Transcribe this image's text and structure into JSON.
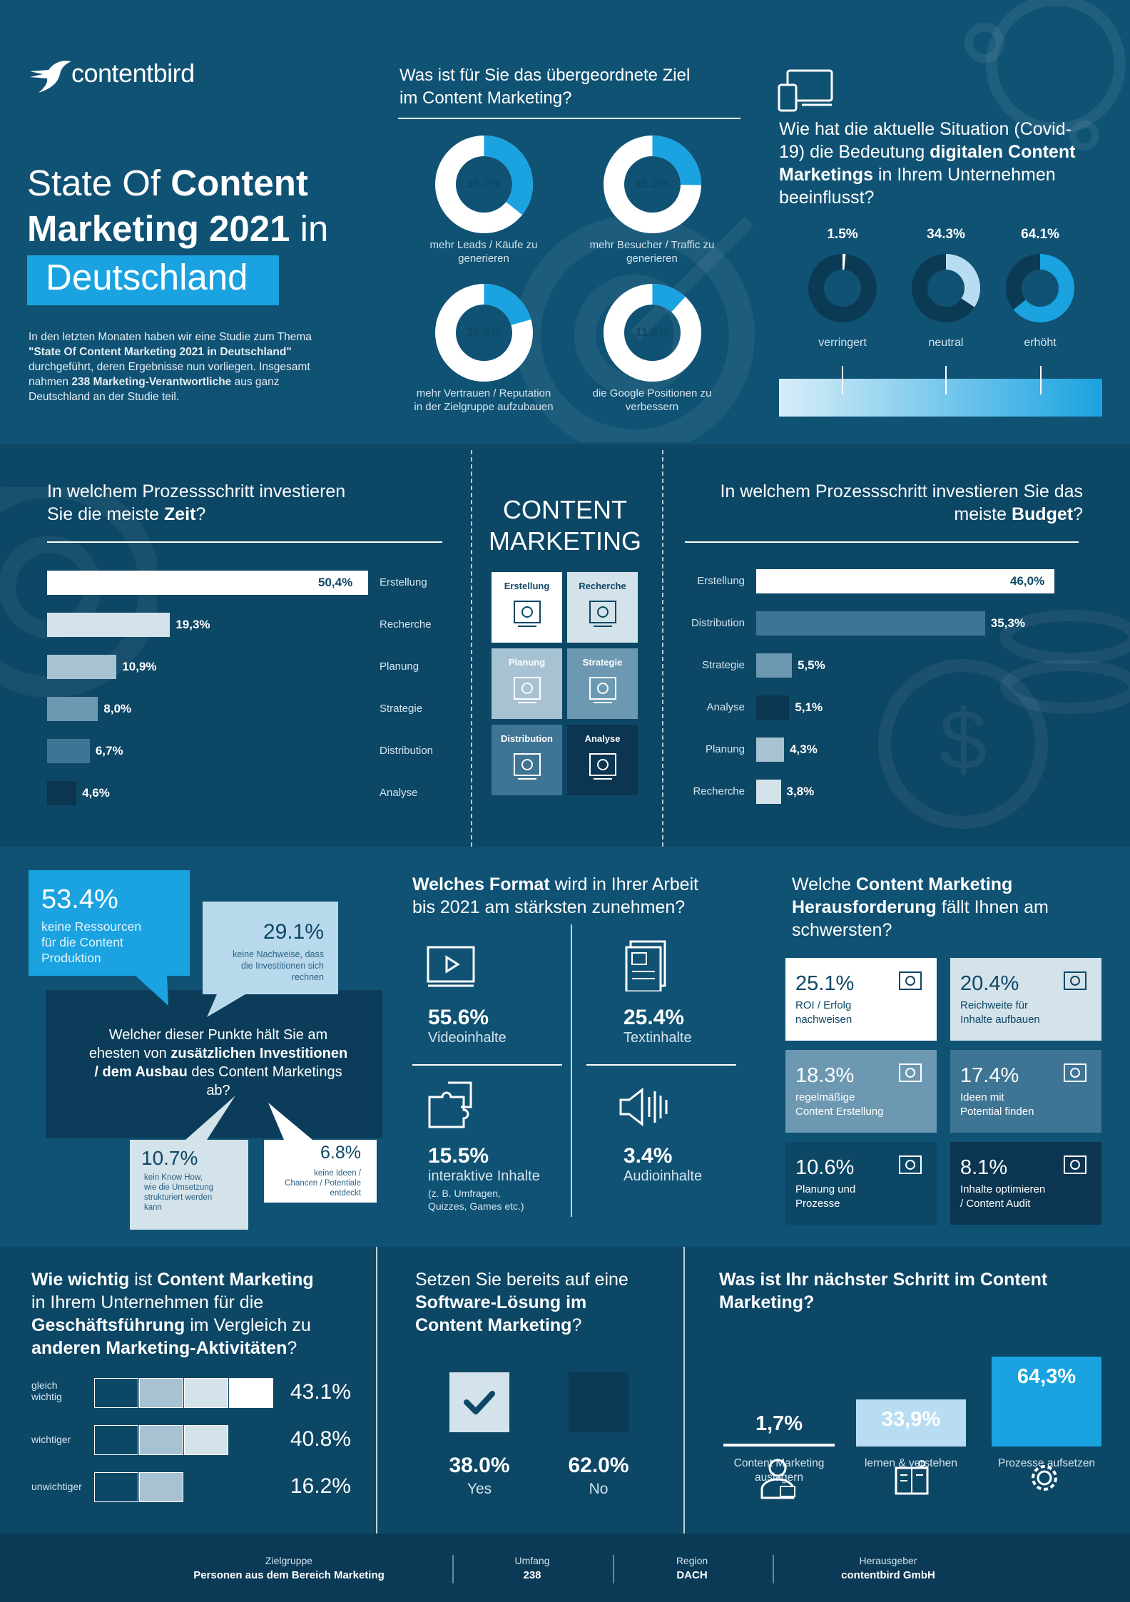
{
  "brand": {
    "name": "contentbird"
  },
  "title": {
    "part1_light": "State Of ",
    "part1_bold": "Content",
    "part2_bold": "Marketing 2021",
    "part2_light": " in",
    "highlight": "Deutschland"
  },
  "intro": {
    "l1": "In den letzten Monaten haben wir eine Studie zum Thema",
    "l2_bold": "\"State Of Content Marketing 2021 in Deutschland\"",
    "l3": "durchgeführt, deren Ergebnisse nun vorliegen. Insgesamt",
    "l4_a": "nahmen ",
    "l4_b": "238 Marketing-Verantwortliche",
    "l4_c": " aus ganz",
    "l5": "Deutschland an der Studie teil."
  },
  "goal": {
    "title_l1": "Was ist für Sie das übergeordnete Ziel",
    "title_l2": "im Content Marketing?",
    "items": [
      {
        "value": 35.7,
        "label": "35.7%",
        "desc_l1": "mehr Leads / Käufe zu",
        "desc_l2": "generieren"
      },
      {
        "value": 25.2,
        "label": "25.2%",
        "desc_l1": "mehr Besucher / Traffic zu",
        "desc_l2": "generieren"
      },
      {
        "value": 20.6,
        "label": "20.6%",
        "desc_l1": "mehr Vertrauen / Reputation",
        "desc_l2": "in der Zielgruppe aufzubauen"
      },
      {
        "value": 11.8,
        "label": "11.8%",
        "desc_l1": "die Google Positionen zu",
        "desc_l2": "verbessern"
      }
    ]
  },
  "covid": {
    "title_l1": "Wie hat die aktuelle Situation (Covid-",
    "title_l2_a": "19) die Bedeutung ",
    "title_l2_b": "digitalen Content",
    "title_l3_a": "Marketings",
    "title_l3_b": " in Ihrem Unternehmen",
    "title_l4": "beeinflusst?",
    "items": [
      {
        "value": 1.5,
        "label": "1.5%",
        "name": "verringert"
      },
      {
        "value": 34.3,
        "label": "34.3%",
        "name": "neutral"
      },
      {
        "value": 64.1,
        "label": "64.1%",
        "name": "erhöht"
      }
    ]
  },
  "time": {
    "title_l1": "In welchem Prozessschritt investieren",
    "title_l2_a": "Sie die meiste ",
    "title_l2_b": "Zeit",
    "title_l2_c": "?",
    "bars": [
      {
        "value": 50.4,
        "label": "50,4%",
        "name": "Erstellung",
        "color": "#ffffff"
      },
      {
        "value": 19.3,
        "label": "19,3%",
        "name": "Recherche",
        "color": "#d4e2ea"
      },
      {
        "value": 10.9,
        "label": "10,9%",
        "name": "Planung",
        "color": "#a7c2d2"
      },
      {
        "value": 8.0,
        "label": "8,0%",
        "name": "Strategie",
        "color": "#6d98b1"
      },
      {
        "value": 6.7,
        "label": "6,7%",
        "name": "Distribution",
        "color": "#3f7594"
      },
      {
        "value": 4.6,
        "label": "4,6%",
        "name": "Analyse",
        "color": "#0b3550"
      }
    ]
  },
  "center": {
    "title_l1": "CONTENT",
    "title_l2": "MARKETING",
    "tiles": [
      {
        "label": "Erstellung",
        "bg": "#ffffff",
        "fg": "#0d4766"
      },
      {
        "label": "Recherche",
        "bg": "#d4e2ea",
        "fg": "#0d4766"
      },
      {
        "label": "Planung",
        "bg": "#a7c2d2",
        "fg": "#ffffff"
      },
      {
        "label": "Strategie",
        "bg": "#6d98b1",
        "fg": "#ffffff"
      },
      {
        "label": "Distribution",
        "bg": "#3f7594",
        "fg": "#ffffff"
      },
      {
        "label": "Analyse",
        "bg": "#0b3550",
        "fg": "#ffffff"
      }
    ]
  },
  "budget": {
    "title_l1": "In welchem Prozessschritt investieren Sie das",
    "title_l2_a": "meiste ",
    "title_l2_b": "Budget",
    "title_l2_c": "?",
    "bars": [
      {
        "value": 46.0,
        "label": "46,0%",
        "name": "Erstellung",
        "color": "#ffffff"
      },
      {
        "value": 35.3,
        "label": "35,3%",
        "name": "Distribution",
        "color": "#3f7594"
      },
      {
        "value": 5.5,
        "label": "5,5%",
        "name": "Strategie",
        "color": "#6d98b1"
      },
      {
        "value": 5.1,
        "label": "5,1%",
        "name": "Analyse",
        "color": "#0b3550"
      },
      {
        "value": 4.3,
        "label": "4,3%",
        "name": "Planung",
        "color": "#a7c2d2"
      },
      {
        "value": 3.8,
        "label": "3,8%",
        "name": "Recherche",
        "color": "#d4e2ea"
      }
    ]
  },
  "invest": {
    "b1_pct": "53.4%",
    "b1_l1": "keine Ressourcen",
    "b1_l2": "für die Content",
    "b1_l3": "Produktion",
    "b2_pct": "29.1%",
    "b2_l1": "keine Nachweise, dass",
    "b2_l2": "die Investitionen sich",
    "b2_l3": "rechnen",
    "q_l1": "Welcher dieser Punkte hält Sie am",
    "q_l2_a": "ehesten von ",
    "q_l2_b": "zusätzlichen Investitionen",
    "q_l3_a": "/ dem Ausbau",
    "q_l3_b": " des Content Marketings",
    "q_l4": "ab?",
    "b3_pct": "10.7%",
    "b3_l1": "kein Know How,",
    "b3_l2": "wie die Umsetzung",
    "b3_l3": "strukturiert werden",
    "b3_l4": "kann",
    "b4_pct": "6.8%",
    "b4_l1": "keine Ideen /",
    "b4_l2": "Chancen / Potentiale",
    "b4_l3": "entdeckt"
  },
  "format": {
    "title_l1_a": "Welches Format",
    "title_l1_b": " wird in Ihrer Arbeit",
    "title_l2": "bis 2021 am stärksten zunehmen?",
    "items": [
      {
        "pct": "55.6%",
        "l1": "Videoinhalte",
        "l2": "",
        "l3": ""
      },
      {
        "pct": "25.4%",
        "l1": "Textinhalte",
        "l2": "",
        "l3": ""
      },
      {
        "pct": "15.5%",
        "l1": "interaktive Inhalte",
        "l2": "(z. B. Umfragen,",
        "l3": "Quizzes, Games etc.)"
      },
      {
        "pct": "3.4%",
        "l1": "Audioinhalte",
        "l2": "",
        "l3": ""
      }
    ]
  },
  "challenge": {
    "title_l1_a": "Welche ",
    "title_l1_b": "Content Marketing",
    "title_l2_a": "Herausforderung",
    "title_l2_b": " fällt Ihnen am",
    "title_l3": "schwersten?",
    "items": [
      {
        "pct": "25.1%",
        "l1": "ROI / Erfolg",
        "l2": "nachweisen",
        "bg": "#ffffff",
        "fg": "#0d4766"
      },
      {
        "pct": "20.4%",
        "l1": "Reichweite für",
        "l2": "Inhalte aufbauen",
        "bg": "#d4e2ea",
        "fg": "#0d4766"
      },
      {
        "pct": "18.3%",
        "l1": "regelmäßige",
        "l2": "Content Erstellung",
        "bg": "#6d98b1",
        "fg": "#ffffff"
      },
      {
        "pct": "17.4%",
        "l1": "Ideen mit",
        "l2": "Potential finden",
        "bg": "#3f7594",
        "fg": "#ffffff"
      },
      {
        "pct": "10.6%",
        "l1": "Planung und",
        "l2": "Prozesse",
        "bg": "#0d4766",
        "fg": "#ffffff"
      },
      {
        "pct": "8.1%",
        "l1": "Inhalte optimieren",
        "l2": "/ Content Audit",
        "bg": "#0b3550",
        "fg": "#ffffff"
      }
    ]
  },
  "importance": {
    "title_l1_a": "Wie wichtig",
    "title_l1_b": " ist ",
    "title_l1_c": "Content Marketing",
    "title_l2": "in Ihrem Unternehmen für die",
    "title_l3_a": "Geschäftsführung",
    "title_l3_b": " im Vergleich zu",
    "title_l4_a": "anderen Marketing-Aktivitäten",
    "title_l4_b": "?",
    "rows": [
      {
        "l1": "gleich",
        "l2": "wichtig",
        "pct": "43.1%",
        "filled": 4
      },
      {
        "l1": "wichtiger",
        "l2": "",
        "pct": "40.8%",
        "filled": 3
      },
      {
        "l1": "unwichtiger",
        "l2": "",
        "pct": "16.2%",
        "filled": 2
      }
    ]
  },
  "software": {
    "title_l1": "Setzen Sie bereits auf eine",
    "title_l2": "Software-Lösung im",
    "title_l3_a": "Content Marketing",
    "title_l3_b": "?",
    "yes_pct": "38.0%",
    "yes": "Yes",
    "no_pct": "62.0%",
    "no": "No"
  },
  "next": {
    "title_l1": "Was ist Ihr nächster Schritt im Content",
    "title_l2": "Marketing?",
    "items": [
      {
        "value": 1.7,
        "pct": "1,7%",
        "l1": "Content Marketing",
        "l2": "auslagern"
      },
      {
        "value": 33.9,
        "pct": "33,9%",
        "l1": "lernen & verstehen",
        "l2": ""
      },
      {
        "value": 64.3,
        "pct": "64,3%",
        "l1": "Prozesse aufsetzen",
        "l2": ""
      }
    ]
  },
  "footer": [
    {
      "label": "Zielgruppe",
      "value": "Personen aus dem Bereich Marketing"
    },
    {
      "label": "Umfang",
      "value": "238"
    },
    {
      "label": "Region",
      "value": "DACH"
    },
    {
      "label": "Herausgeber",
      "value": "contentbird GmbH"
    }
  ]
}
